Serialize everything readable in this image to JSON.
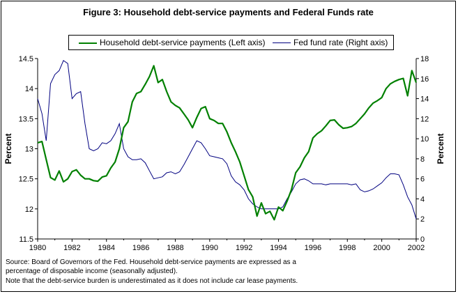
{
  "title": "Figure 3: Household debt-service payments and Federal Funds rate",
  "notes": [
    "Source: Board of Governors of the Fed. Household debt-service payments are expressed as a",
    "percentage of disposable income (seasonally adjusted).",
    "Note that the debt-service burden is underestimated as it does not include car lease payments."
  ],
  "colors": {
    "debt": "#008000",
    "fed": "#000080"
  },
  "chart_data": {
    "type": "line",
    "xlim": [
      1980,
      2002
    ],
    "x_ticks": [
      1980,
      1982,
      1984,
      1986,
      1988,
      1990,
      1992,
      1994,
      1996,
      1998,
      2000,
      2002
    ],
    "x_tick_labels": [
      "1980",
      "1982",
      "1984",
      "1986",
      "1988",
      "1990",
      "1992",
      "1994",
      "1996",
      "1998",
      "2000",
      "2002"
    ],
    "left_axis": {
      "label": "Percent",
      "ylim": [
        11.5,
        14.5
      ],
      "ticks": [
        11.5,
        12,
        12.5,
        13,
        13.5,
        14,
        14.5
      ],
      "tick_labels": [
        "11.5",
        "12",
        "12.5",
        "13",
        "13.5",
        "14",
        "14.5"
      ]
    },
    "right_axis": {
      "label": "Percent",
      "ylim": [
        0,
        18
      ],
      "ticks": [
        0,
        2,
        4,
        6,
        8,
        10,
        12,
        14,
        16,
        18
      ],
      "tick_labels": [
        "0",
        "2",
        "4",
        "6",
        "8",
        "10",
        "12",
        "14",
        "16",
        "18"
      ]
    },
    "legend_position": "top",
    "grid": false,
    "series": [
      {
        "name": "Household debt-service payments (Left axis)",
        "axis": "left",
        "x": [
          1980.0,
          1980.25,
          1980.5,
          1980.75,
          1981.0,
          1981.25,
          1981.5,
          1981.75,
          1982.0,
          1982.25,
          1982.5,
          1982.75,
          1983.0,
          1983.25,
          1983.5,
          1983.75,
          1984.0,
          1984.25,
          1984.5,
          1984.75,
          1985.0,
          1985.25,
          1985.5,
          1985.75,
          1986.0,
          1986.25,
          1986.5,
          1986.75,
          1987.0,
          1987.25,
          1987.5,
          1987.75,
          1988.0,
          1988.25,
          1988.5,
          1988.75,
          1989.0,
          1989.25,
          1989.5,
          1989.75,
          1990.0,
          1990.25,
          1990.5,
          1990.75,
          1991.0,
          1991.25,
          1991.5,
          1991.75,
          1992.0,
          1992.25,
          1992.5,
          1992.75,
          1993.0,
          1993.25,
          1993.5,
          1993.75,
          1994.0,
          1994.25,
          1994.5,
          1994.75,
          1995.0,
          1995.25,
          1995.5,
          1995.75,
          1996.0,
          1996.25,
          1996.5,
          1996.75,
          1997.0,
          1997.25,
          1997.5,
          1997.75,
          1998.0,
          1998.25,
          1998.5,
          1998.75,
          1999.0,
          1999.25,
          1999.5,
          1999.75,
          2000.0,
          2000.25,
          2000.5,
          2000.75,
          2001.0,
          2001.25,
          2001.5,
          2001.75,
          2002.0
        ],
        "values": [
          13.1,
          13.12,
          12.82,
          12.52,
          12.48,
          12.63,
          12.45,
          12.5,
          12.62,
          12.65,
          12.56,
          12.5,
          12.5,
          12.47,
          12.46,
          12.53,
          12.55,
          12.68,
          12.78,
          13.0,
          13.35,
          13.45,
          13.78,
          13.92,
          13.95,
          14.07,
          14.2,
          14.38,
          14.1,
          14.15,
          13.95,
          13.78,
          13.72,
          13.68,
          13.58,
          13.48,
          13.35,
          13.52,
          13.67,
          13.7,
          13.5,
          13.47,
          13.42,
          13.42,
          13.28,
          13.1,
          12.95,
          12.78,
          12.55,
          12.32,
          12.2,
          11.88,
          12.1,
          11.92,
          11.96,
          11.82,
          12.03,
          11.97,
          12.13,
          12.32,
          12.6,
          12.7,
          12.85,
          12.95,
          13.18,
          13.25,
          13.3,
          13.38,
          13.47,
          13.48,
          13.4,
          13.34,
          13.35,
          13.37,
          13.42,
          13.5,
          13.58,
          13.68,
          13.76,
          13.8,
          13.85,
          14.0,
          14.08,
          14.12,
          14.15,
          14.17,
          13.88,
          14.3,
          14.1
        ]
      },
      {
        "name": "Fed fund rate (Right axis)",
        "axis": "right",
        "x": [
          1980.0,
          1980.25,
          1980.5,
          1980.75,
          1981.0,
          1981.25,
          1981.5,
          1981.75,
          1982.0,
          1982.25,
          1982.5,
          1982.75,
          1983.0,
          1983.25,
          1983.5,
          1983.75,
          1984.0,
          1984.25,
          1984.5,
          1984.75,
          1985.0,
          1985.25,
          1985.5,
          1985.75,
          1986.0,
          1986.25,
          1986.5,
          1986.75,
          1987.0,
          1987.25,
          1987.5,
          1987.75,
          1988.0,
          1988.25,
          1988.5,
          1988.75,
          1989.0,
          1989.25,
          1989.5,
          1989.75,
          1990.0,
          1990.25,
          1990.5,
          1990.75,
          1991.0,
          1991.25,
          1991.5,
          1991.75,
          1992.0,
          1992.25,
          1992.5,
          1992.75,
          1993.0,
          1993.25,
          1993.5,
          1993.75,
          1994.0,
          1994.25,
          1994.5,
          1994.75,
          1995.0,
          1995.25,
          1995.5,
          1995.75,
          1996.0,
          1996.25,
          1996.5,
          1996.75,
          1997.0,
          1997.25,
          1997.5,
          1997.75,
          1998.0,
          1998.25,
          1998.5,
          1998.75,
          1999.0,
          1999.25,
          1999.5,
          1999.75,
          2000.0,
          2000.25,
          2000.5,
          2000.75,
          2001.0,
          2001.25,
          2001.5,
          2001.75,
          2002.0
        ],
        "values": [
          14.0,
          12.5,
          9.8,
          15.5,
          16.4,
          16.8,
          17.8,
          17.5,
          14.0,
          14.5,
          14.7,
          11.5,
          9.0,
          8.8,
          9.0,
          9.6,
          9.5,
          9.8,
          10.5,
          11.5,
          9.0,
          8.2,
          7.9,
          7.9,
          8.0,
          7.6,
          6.8,
          6.0,
          6.1,
          6.2,
          6.6,
          6.7,
          6.5,
          6.7,
          7.4,
          8.2,
          9.0,
          9.8,
          9.6,
          9.0,
          8.3,
          8.2,
          8.1,
          8.0,
          7.5,
          6.3,
          5.7,
          5.4,
          4.9,
          4.0,
          3.5,
          3.2,
          3.0,
          3.0,
          3.0,
          3.0,
          3.0,
          3.2,
          4.0,
          4.7,
          5.5,
          5.9,
          6.0,
          5.8,
          5.5,
          5.5,
          5.5,
          5.4,
          5.5,
          5.5,
          5.5,
          5.5,
          5.5,
          5.4,
          5.5,
          4.9,
          4.7,
          4.8,
          5.0,
          5.3,
          5.6,
          6.1,
          6.5,
          6.5,
          6.4,
          5.4,
          4.2,
          3.4,
          2.0
        ]
      }
    ]
  }
}
